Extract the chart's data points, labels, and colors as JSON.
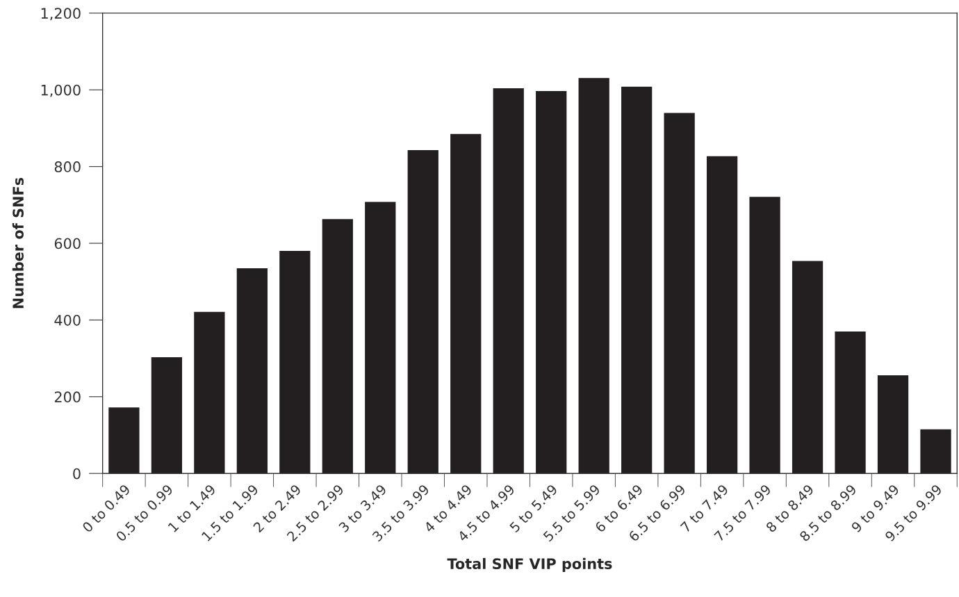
{
  "chart_data": {
    "type": "bar",
    "xlabel": "Total SNF VIP points",
    "ylabel": "Number of SNFs",
    "categories": [
      "0 to 0.49",
      "0.5 to 0.99",
      "1 to 1.49",
      "1.5 to 1.99",
      "2 to 2.49",
      "2.5 to 2.99",
      "3 to 3.49",
      "3.5 to 3.99",
      "4 to 4.49",
      "4.5 to 4.99",
      "5 to 5.49",
      "5.5 to 5.99",
      "6 to 6.49",
      "6.5 to 6.99",
      "7 to 7.49",
      "7.5 to 7.99",
      "8 to 8.49",
      "8.5 to 8.99",
      "9 to 9.49",
      "9.5 to 9.99"
    ],
    "values": [
      172,
      303,
      421,
      535,
      580,
      663,
      708,
      843,
      885,
      1004,
      997,
      1031,
      1008,
      940,
      827,
      721,
      554,
      370,
      256,
      115
    ],
    "color": "#231f20",
    "ylim": [
      0,
      1200
    ],
    "yticks": [
      {
        "value": 0,
        "label": "0"
      },
      {
        "value": 200,
        "label": "200"
      },
      {
        "value": 400,
        "label": "400"
      },
      {
        "value": 600,
        "label": "600"
      },
      {
        "value": 800,
        "label": "800"
      },
      {
        "value": 1000,
        "label": "1,000"
      },
      {
        "value": 1200,
        "label": "1,200"
      }
    ],
    "grid": false,
    "legend": false
  }
}
